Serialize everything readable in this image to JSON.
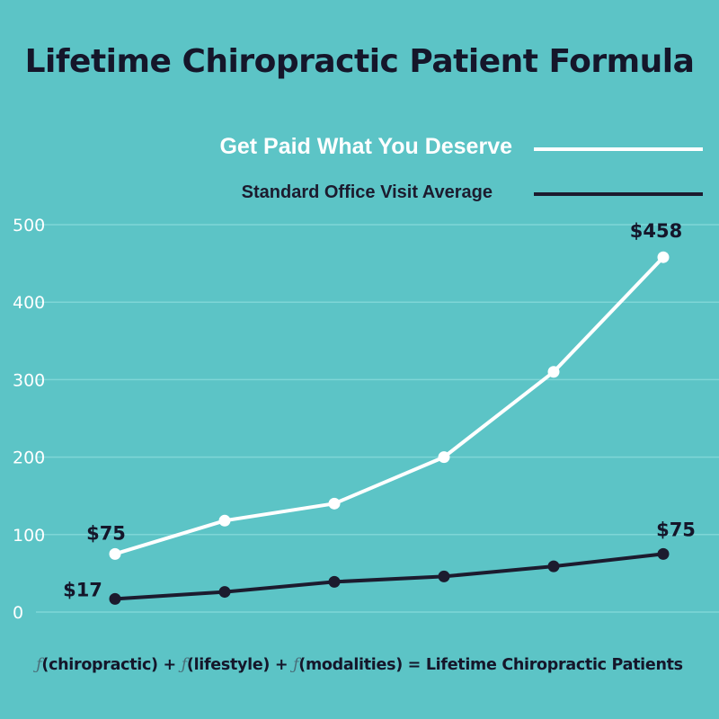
{
  "colors": {
    "background": "#5cc4c6",
    "title": "#15162a",
    "gridline": "#7fd6d7",
    "series_paid": "#ffffff",
    "series_standard": "#1c1b2e"
  },
  "chart_data": {
    "type": "line",
    "title": "Lifetime Chiropractic Patient Formula",
    "x": [
      1,
      2,
      3,
      4,
      5,
      6
    ],
    "ylim": [
      0,
      500
    ],
    "yticks": [
      0,
      100,
      200,
      300,
      400,
      500
    ],
    "grid": true,
    "legend_position": "top-right",
    "series": [
      {
        "name": "Get Paid What You Deserve",
        "values": [
          75,
          118,
          140,
          200,
          310,
          458
        ]
      },
      {
        "name": "Standard Office Visit Average",
        "values": [
          17,
          26,
          39,
          46,
          59,
          75
        ]
      }
    ],
    "annotations": [
      {
        "series": 0,
        "point": 0,
        "text": "$75"
      },
      {
        "series": 0,
        "point": 5,
        "text": "$458"
      },
      {
        "series": 1,
        "point": 0,
        "text": "$17"
      },
      {
        "series": 1,
        "point": 5,
        "text": "$75"
      }
    ]
  },
  "formula": {
    "symbol": "ƒ",
    "term1": "(chiropractic) + ",
    "term2": "(lifestyle) + ",
    "term3": "(modalities) = Lifetime Chiropractic Patients"
  }
}
